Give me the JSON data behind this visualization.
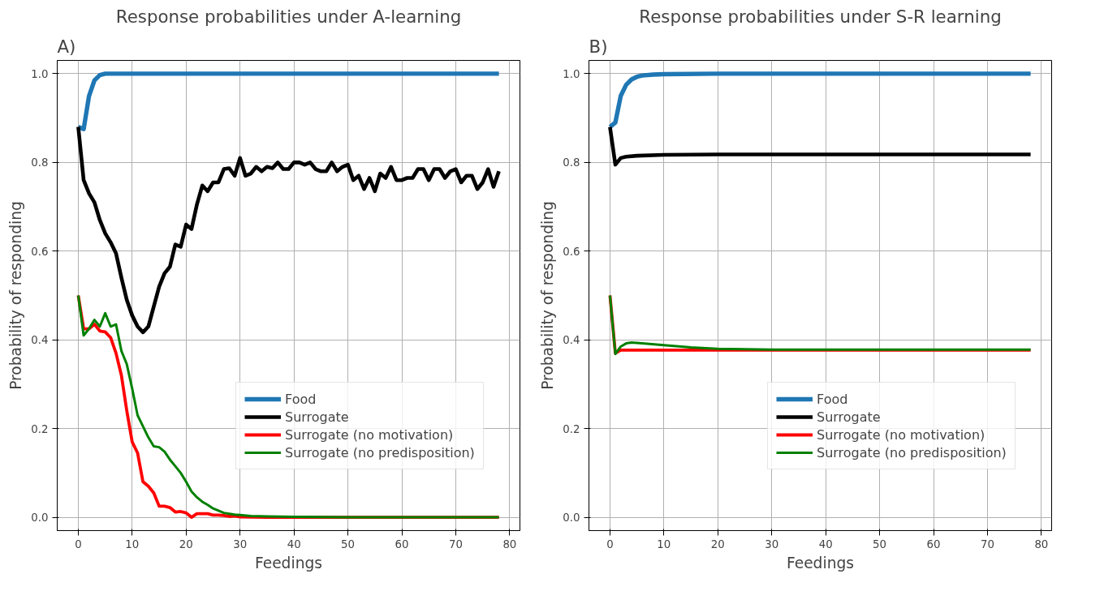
{
  "chart_data": [
    {
      "type": "line",
      "title": "Response probabilities under A-learning",
      "annotations": [
        "A)"
      ],
      "xlabel": "Feedings",
      "ylabel": "Probability of responding",
      "xlim": [
        -3.9,
        81.9
      ],
      "ylim": [
        -0.03,
        1.03
      ],
      "xticks": [
        0,
        10,
        20,
        30,
        40,
        50,
        60,
        70,
        80
      ],
      "yticks": [
        {
          "value": 0,
          "label": "0.0"
        },
        {
          "value": 0.2,
          "label": "0.2"
        },
        {
          "value": 0.4,
          "label": "0.4"
        },
        {
          "value": 0.6,
          "label": "0.6"
        },
        {
          "value": 0.8,
          "label": "0.8"
        },
        {
          "value": 1,
          "label": "1.0"
        }
      ],
      "grid": true,
      "legend": "bottom right",
      "line_style": "solid",
      "series": [
        {
          "name": "Food",
          "color": "#1f77b4",
          "x": [
            0,
            1,
            2,
            3,
            4,
            5,
            6,
            78
          ],
          "values": [
            0.88,
            0.875,
            0.95,
            0.985,
            0.997,
            1.0,
            1.0,
            1.0
          ]
        },
        {
          "name": "Surrogate",
          "color": "#000000",
          "x": [
            0,
            1,
            2,
            3,
            4,
            5,
            6,
            7,
            8,
            9,
            10,
            11,
            12,
            13,
            14,
            15,
            16,
            17,
            18,
            19,
            20,
            21,
            22,
            23,
            24,
            25,
            26,
            27,
            28,
            29,
            30,
            31,
            32,
            33,
            34,
            35,
            36,
            37,
            38,
            39,
            40,
            41,
            42,
            43,
            44,
            45,
            46,
            47,
            48,
            49,
            50,
            51,
            52,
            53,
            54,
            55,
            56,
            57,
            58,
            59,
            60,
            61,
            62,
            63,
            64,
            65,
            66,
            67,
            68,
            69,
            70,
            71,
            72,
            73,
            74,
            75,
            76,
            77,
            78
          ],
          "values": [
            0.88,
            0.76,
            0.73,
            0.71,
            0.67,
            0.64,
            0.62,
            0.595,
            0.54,
            0.49,
            0.455,
            0.43,
            0.417,
            0.43,
            0.475,
            0.52,
            0.55,
            0.565,
            0.615,
            0.61,
            0.66,
            0.65,
            0.705,
            0.748,
            0.735,
            0.755,
            0.755,
            0.785,
            0.787,
            0.77,
            0.81,
            0.77,
            0.775,
            0.79,
            0.78,
            0.79,
            0.787,
            0.8,
            0.785,
            0.785,
            0.8,
            0.8,
            0.795,
            0.8,
            0.785,
            0.78,
            0.78,
            0.8,
            0.78,
            0.79,
            0.795,
            0.76,
            0.77,
            0.74,
            0.765,
            0.735,
            0.775,
            0.765,
            0.79,
            0.76,
            0.76,
            0.765,
            0.765,
            0.785,
            0.785,
            0.76,
            0.785,
            0.785,
            0.765,
            0.78,
            0.785,
            0.755,
            0.77,
            0.77,
            0.74,
            0.755,
            0.785,
            0.745,
            0.78
          ]
        },
        {
          "name": "Surrogate (no motivation)",
          "color": "#ff0000",
          "x": [
            0,
            1,
            2,
            3,
            4,
            5,
            6,
            7,
            8,
            9,
            10,
            11,
            12,
            13,
            14,
            15,
            16,
            17,
            18,
            19,
            20,
            21,
            22,
            23,
            24,
            25,
            26,
            27,
            28,
            29,
            30,
            35,
            78
          ],
          "values": [
            0.5,
            0.425,
            0.425,
            0.435,
            0.42,
            0.418,
            0.405,
            0.37,
            0.32,
            0.24,
            0.17,
            0.145,
            0.08,
            0.07,
            0.055,
            0.025,
            0.025,
            0.022,
            0.012,
            0.013,
            0.01,
            0.0,
            0.008,
            0.008,
            0.008,
            0.005,
            0.005,
            0.004,
            0.002,
            0.003,
            0.001,
            0.0,
            0.0
          ]
        },
        {
          "name": "Surrogate (no predisposition)",
          "color": "#008000",
          "x": [
            0,
            1,
            2,
            3,
            4,
            5,
            6,
            7,
            8,
            9,
            10,
            11,
            12,
            13,
            14,
            15,
            16,
            17,
            18,
            19,
            20,
            21,
            22,
            23,
            24,
            25,
            26,
            27,
            28,
            29,
            30,
            32,
            35,
            40,
            50,
            78
          ],
          "values": [
            0.5,
            0.41,
            0.425,
            0.445,
            0.43,
            0.46,
            0.43,
            0.435,
            0.375,
            0.345,
            0.29,
            0.23,
            0.205,
            0.18,
            0.16,
            0.158,
            0.148,
            0.13,
            0.115,
            0.1,
            0.08,
            0.058,
            0.045,
            0.035,
            0.028,
            0.02,
            0.015,
            0.01,
            0.008,
            0.006,
            0.005,
            0.003,
            0.002,
            0.001,
            0.0,
            0.0
          ]
        }
      ]
    },
    {
      "type": "line",
      "title": "Response probabilities under S-R learning",
      "annotations": [
        "B)"
      ],
      "xlabel": "Feedings",
      "ylabel": "Probability of responding",
      "xlim": [
        -3.9,
        81.9
      ],
      "ylim": [
        -0.03,
        1.03
      ],
      "xticks": [
        0,
        10,
        20,
        30,
        40,
        50,
        60,
        70,
        80
      ],
      "yticks": [
        {
          "value": 0,
          "label": "0.0"
        },
        {
          "value": 0.2,
          "label": "0.2"
        },
        {
          "value": 0.4,
          "label": "0.4"
        },
        {
          "value": 0.6,
          "label": "0.6"
        },
        {
          "value": 0.8,
          "label": "0.8"
        },
        {
          "value": 1,
          "label": "1.0"
        }
      ],
      "grid": true,
      "legend": "bottom right",
      "line_style": "solid",
      "series": [
        {
          "name": "Food",
          "color": "#1f77b4",
          "x": [
            0,
            1,
            2,
            3,
            4,
            5,
            6,
            8,
            10,
            20,
            78
          ],
          "values": [
            0.88,
            0.89,
            0.95,
            0.975,
            0.987,
            0.993,
            0.996,
            0.998,
            0.999,
            1.0,
            1.0
          ]
        },
        {
          "name": "Surrogate",
          "color": "#000000",
          "x": [
            0,
            1,
            2,
            3,
            5,
            10,
            20,
            78
          ],
          "values": [
            0.88,
            0.795,
            0.81,
            0.813,
            0.815,
            0.817,
            0.818,
            0.818
          ]
        },
        {
          "name": "Surrogate (no motivation)",
          "color": "#ff0000",
          "x": [
            0,
            1,
            2,
            78
          ],
          "values": [
            0.5,
            0.37,
            0.377,
            0.377
          ]
        },
        {
          "name": "Surrogate (no predisposition)",
          "color": "#008000",
          "x": [
            0,
            1,
            2,
            3,
            4,
            6,
            10,
            15,
            20,
            30,
            78
          ],
          "values": [
            0.5,
            0.368,
            0.385,
            0.392,
            0.394,
            0.392,
            0.388,
            0.383,
            0.38,
            0.378,
            0.378
          ]
        }
      ]
    }
  ]
}
